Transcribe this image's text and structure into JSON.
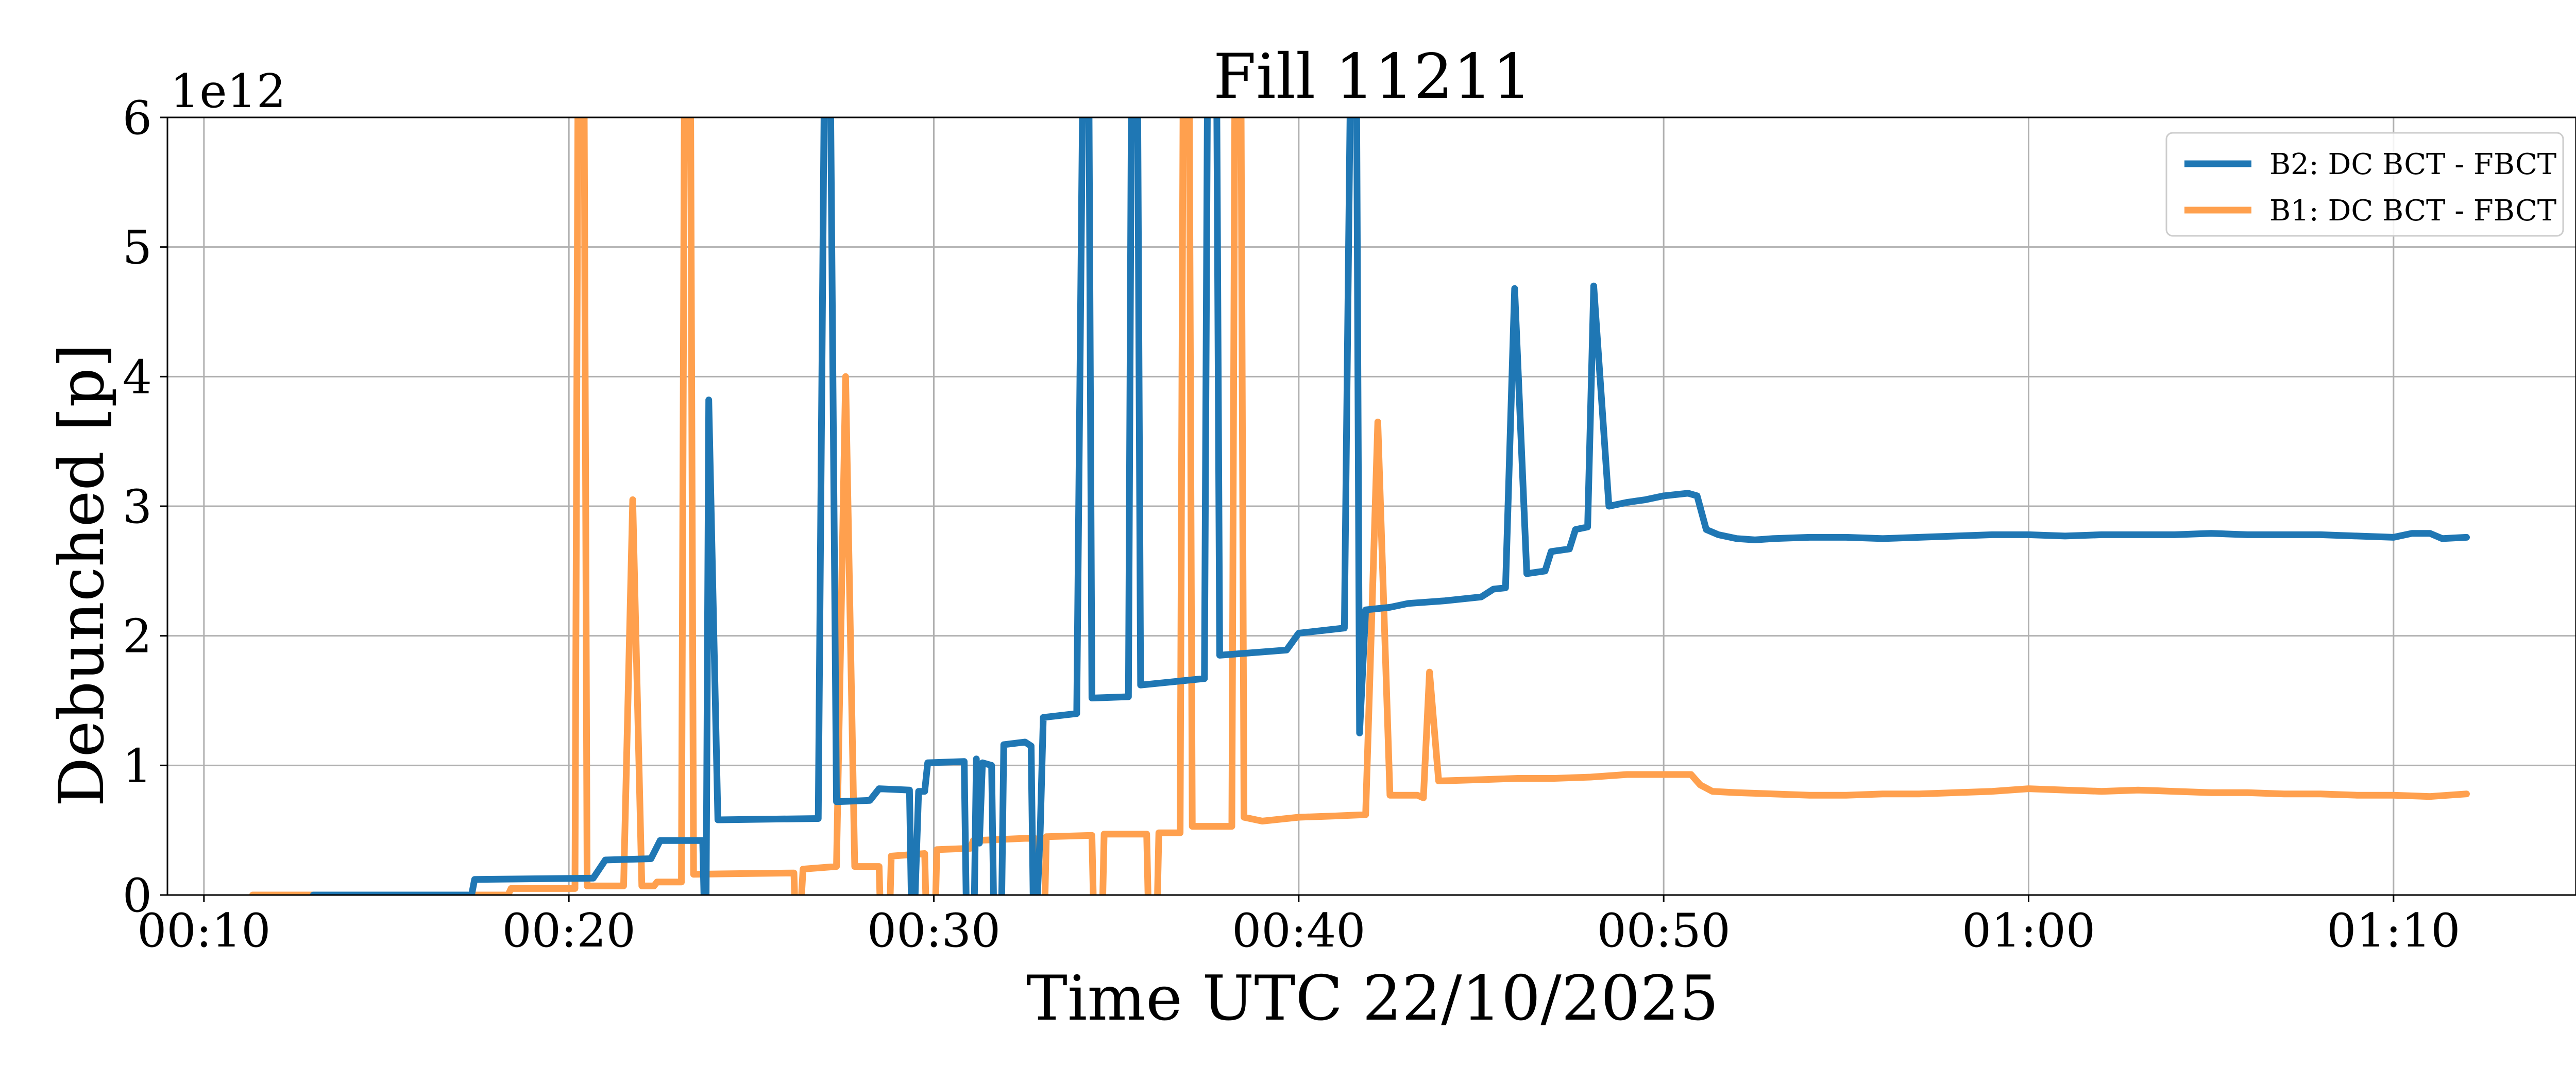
{
  "chart_data": {
    "type": "line",
    "title": "Fill 11211",
    "xlabel": "Time UTC 22/10/2025",
    "ylabel": "Debunched [p]",
    "y_scale_label": "1e12",
    "y_multiplier": 1000000000000.0,
    "xlim": [
      "00:09:00",
      "01:15:00"
    ],
    "ylim": [
      0,
      6
    ],
    "x_ticks": [
      "00:10",
      "00:20",
      "00:30",
      "00:40",
      "00:50",
      "01:00",
      "01:10"
    ],
    "y_ticks": [
      "0",
      "1",
      "2",
      "3",
      "4",
      "5",
      "6"
    ],
    "grid": true,
    "legend_position": "top-right",
    "series": [
      {
        "name": "B2: DC BCT - FBCT",
        "color": "#1f77b4",
        "points": [
          [
            "00:13:00",
            0
          ],
          [
            "00:17:20",
            0
          ],
          [
            "00:17:25",
            0.12
          ],
          [
            "00:20:40",
            0.13
          ],
          [
            "00:21:00",
            0.27
          ],
          [
            "00:22:15",
            0.28
          ],
          [
            "00:22:30",
            0.42
          ],
          [
            "00:23:40",
            0.42
          ],
          [
            "00:23:45",
            -0.6
          ],
          [
            "00:23:50",
            3.82
          ],
          [
            "00:24:05",
            0.58
          ],
          [
            "00:26:50",
            0.59
          ],
          [
            "00:27:00",
            6.3
          ],
          [
            "00:27:10",
            6.3
          ],
          [
            "00:27:20",
            0.72
          ],
          [
            "00:28:15",
            0.73
          ],
          [
            "00:28:30",
            0.82
          ],
          [
            "00:29:20",
            0.81
          ],
          [
            "00:29:25",
            -0.6
          ],
          [
            "00:29:35",
            0.8
          ],
          [
            "00:29:45",
            0.8
          ],
          [
            "00:29:50",
            1.02
          ],
          [
            "00:30:50",
            1.03
          ],
          [
            "00:30:55",
            -0.6
          ],
          [
            "00:31:05",
            -0.6
          ],
          [
            "00:31:10",
            1.05
          ],
          [
            "00:31:15",
            0.4
          ],
          [
            "00:31:20",
            1.02
          ],
          [
            "00:31:35",
            1.0
          ],
          [
            "00:31:40",
            -0.6
          ],
          [
            "00:31:50",
            -0.6
          ],
          [
            "00:31:55",
            1.16
          ],
          [
            "00:32:30",
            1.18
          ],
          [
            "00:32:40",
            1.15
          ],
          [
            "00:32:45",
            -0.6
          ],
          [
            "00:32:55",
            0.5
          ],
          [
            "00:33:00",
            1.37
          ],
          [
            "00:33:55",
            1.4
          ],
          [
            "00:34:05",
            6.3
          ],
          [
            "00:34:15",
            6.3
          ],
          [
            "00:34:20",
            1.52
          ],
          [
            "00:35:20",
            1.53
          ],
          [
            "00:35:25",
            6.3
          ],
          [
            "00:35:35",
            6.3
          ],
          [
            "00:35:40",
            1.62
          ],
          [
            "00:37:25",
            1.67
          ],
          [
            "00:37:30",
            6.3
          ],
          [
            "00:37:45",
            6.3
          ],
          [
            "00:37:50",
            1.85
          ],
          [
            "00:39:40",
            1.89
          ],
          [
            "00:40:00",
            2.02
          ],
          [
            "00:41:15",
            2.06
          ],
          [
            "00:41:25",
            6.3
          ],
          [
            "00:41:35",
            6.3
          ],
          [
            "00:41:40",
            1.25
          ],
          [
            "00:41:50",
            2.2
          ],
          [
            "00:42:30",
            2.22
          ],
          [
            "00:43:00",
            2.25
          ],
          [
            "00:44:00",
            2.27
          ],
          [
            "00:45:00",
            2.3
          ],
          [
            "00:45:20",
            2.36
          ],
          [
            "00:45:40",
            2.37
          ],
          [
            "00:45:55",
            4.68
          ],
          [
            "00:46:15",
            2.48
          ],
          [
            "00:46:45",
            2.5
          ],
          [
            "00:46:55",
            2.65
          ],
          [
            "00:47:25",
            2.67
          ],
          [
            "00:47:35",
            2.82
          ],
          [
            "00:47:55",
            2.84
          ],
          [
            "00:48:05",
            4.7
          ],
          [
            "00:48:30",
            3.0
          ],
          [
            "00:49:00",
            3.03
          ],
          [
            "00:49:30",
            3.05
          ],
          [
            "00:50:00",
            3.08
          ],
          [
            "00:50:40",
            3.1
          ],
          [
            "00:50:55",
            3.08
          ],
          [
            "00:51:10",
            2.82
          ],
          [
            "00:51:30",
            2.78
          ],
          [
            "00:52:00",
            2.75
          ],
          [
            "00:52:30",
            2.74
          ],
          [
            "00:53:00",
            2.75
          ],
          [
            "00:54:00",
            2.76
          ],
          [
            "00:55:00",
            2.76
          ],
          [
            "00:56:00",
            2.75
          ],
          [
            "00:57:00",
            2.76
          ],
          [
            "00:58:00",
            2.77
          ],
          [
            "00:59:00",
            2.78
          ],
          [
            "01:00:00",
            2.78
          ],
          [
            "01:01:00",
            2.77
          ],
          [
            "01:02:00",
            2.78
          ],
          [
            "01:03:00",
            2.78
          ],
          [
            "01:04:00",
            2.78
          ],
          [
            "01:05:00",
            2.79
          ],
          [
            "01:06:00",
            2.78
          ],
          [
            "01:07:00",
            2.78
          ],
          [
            "01:08:00",
            2.78
          ],
          [
            "01:09:00",
            2.77
          ],
          [
            "01:10:00",
            2.76
          ],
          [
            "01:10:30",
            2.79
          ],
          [
            "01:11:00",
            2.79
          ],
          [
            "01:11:20",
            2.75
          ],
          [
            "01:12:00",
            2.76
          ]
        ]
      },
      {
        "name": "B1: DC BCT - FBCT",
        "color": "#ffa04e",
        "points": [
          [
            "00:11:20",
            0
          ],
          [
            "00:18:20",
            0
          ],
          [
            "00:18:25",
            0.05
          ],
          [
            "00:20:10",
            0.05
          ],
          [
            "00:20:15",
            6.3
          ],
          [
            "00:20:25",
            6.3
          ],
          [
            "00:20:30",
            0.07
          ],
          [
            "00:21:30",
            0.07
          ],
          [
            "00:21:45",
            3.05
          ],
          [
            "00:22:00",
            0.07
          ],
          [
            "00:22:20",
            0.07
          ],
          [
            "00:22:25",
            0.1
          ],
          [
            "00:23:05",
            0.1
          ],
          [
            "00:23:10",
            6.3
          ],
          [
            "00:23:20",
            6.3
          ],
          [
            "00:23:25",
            0.16
          ],
          [
            "00:26:10",
            0.17
          ],
          [
            "00:26:15",
            -0.6
          ],
          [
            "00:26:25",
            0.2
          ],
          [
            "00:27:20",
            0.22
          ],
          [
            "00:27:35",
            4.0
          ],
          [
            "00:27:50",
            0.22
          ],
          [
            "00:28:30",
            0.22
          ],
          [
            "00:28:35",
            -0.6
          ],
          [
            "00:28:45",
            -0.6
          ],
          [
            "00:28:50",
            0.3
          ],
          [
            "00:29:45",
            0.32
          ],
          [
            "00:29:50",
            -0.6
          ],
          [
            "00:30:00",
            -0.6
          ],
          [
            "00:30:05",
            0.35
          ],
          [
            "00:31:00",
            0.36
          ],
          [
            "00:31:05",
            0.42
          ],
          [
            "00:32:45",
            0.44
          ],
          [
            "00:32:50",
            -0.6
          ],
          [
            "00:33:00",
            -0.6
          ],
          [
            "00:33:05",
            0.45
          ],
          [
            "00:34:20",
            0.46
          ],
          [
            "00:34:25",
            -0.6
          ],
          [
            "00:34:35",
            -0.6
          ],
          [
            "00:34:40",
            0.47
          ],
          [
            "00:35:50",
            0.47
          ],
          [
            "00:35:55",
            -0.6
          ],
          [
            "00:36:05",
            -0.6
          ],
          [
            "00:36:10",
            0.48
          ],
          [
            "00:36:45",
            0.48
          ],
          [
            "00:36:50",
            6.3
          ],
          [
            "00:37:00",
            6.3
          ],
          [
            "00:37:05",
            0.53
          ],
          [
            "00:38:10",
            0.53
          ],
          [
            "00:38:15",
            6.3
          ],
          [
            "00:38:25",
            6.3
          ],
          [
            "00:38:30",
            0.6
          ],
          [
            "00:39:00",
            0.57
          ],
          [
            "00:40:00",
            0.6
          ],
          [
            "00:41:00",
            0.61
          ],
          [
            "00:41:50",
            0.62
          ],
          [
            "00:42:10",
            3.65
          ],
          [
            "00:42:30",
            0.77
          ],
          [
            "00:43:15",
            0.77
          ],
          [
            "00:43:25",
            0.75
          ],
          [
            "00:43:35",
            1.72
          ],
          [
            "00:43:50",
            0.88
          ],
          [
            "00:45:00",
            0.89
          ],
          [
            "00:46:00",
            0.9
          ],
          [
            "00:47:00",
            0.9
          ],
          [
            "00:48:00",
            0.91
          ],
          [
            "00:49:00",
            0.93
          ],
          [
            "00:50:00",
            0.93
          ],
          [
            "00:50:45",
            0.93
          ],
          [
            "00:51:00",
            0.85
          ],
          [
            "00:51:20",
            0.8
          ],
          [
            "00:52:00",
            0.79
          ],
          [
            "00:53:00",
            0.78
          ],
          [
            "00:54:00",
            0.77
          ],
          [
            "00:55:00",
            0.77
          ],
          [
            "00:56:00",
            0.78
          ],
          [
            "00:57:00",
            0.78
          ],
          [
            "00:58:00",
            0.79
          ],
          [
            "00:59:00",
            0.8
          ],
          [
            "01:00:00",
            0.82
          ],
          [
            "01:01:00",
            0.81
          ],
          [
            "01:02:00",
            0.8
          ],
          [
            "01:03:00",
            0.81
          ],
          [
            "01:04:00",
            0.8
          ],
          [
            "01:05:00",
            0.79
          ],
          [
            "01:06:00",
            0.79
          ],
          [
            "01:07:00",
            0.78
          ],
          [
            "01:08:00",
            0.78
          ],
          [
            "01:09:00",
            0.77
          ],
          [
            "01:10:00",
            0.77
          ],
          [
            "01:11:00",
            0.76
          ],
          [
            "01:12:00",
            0.78
          ]
        ]
      }
    ]
  }
}
